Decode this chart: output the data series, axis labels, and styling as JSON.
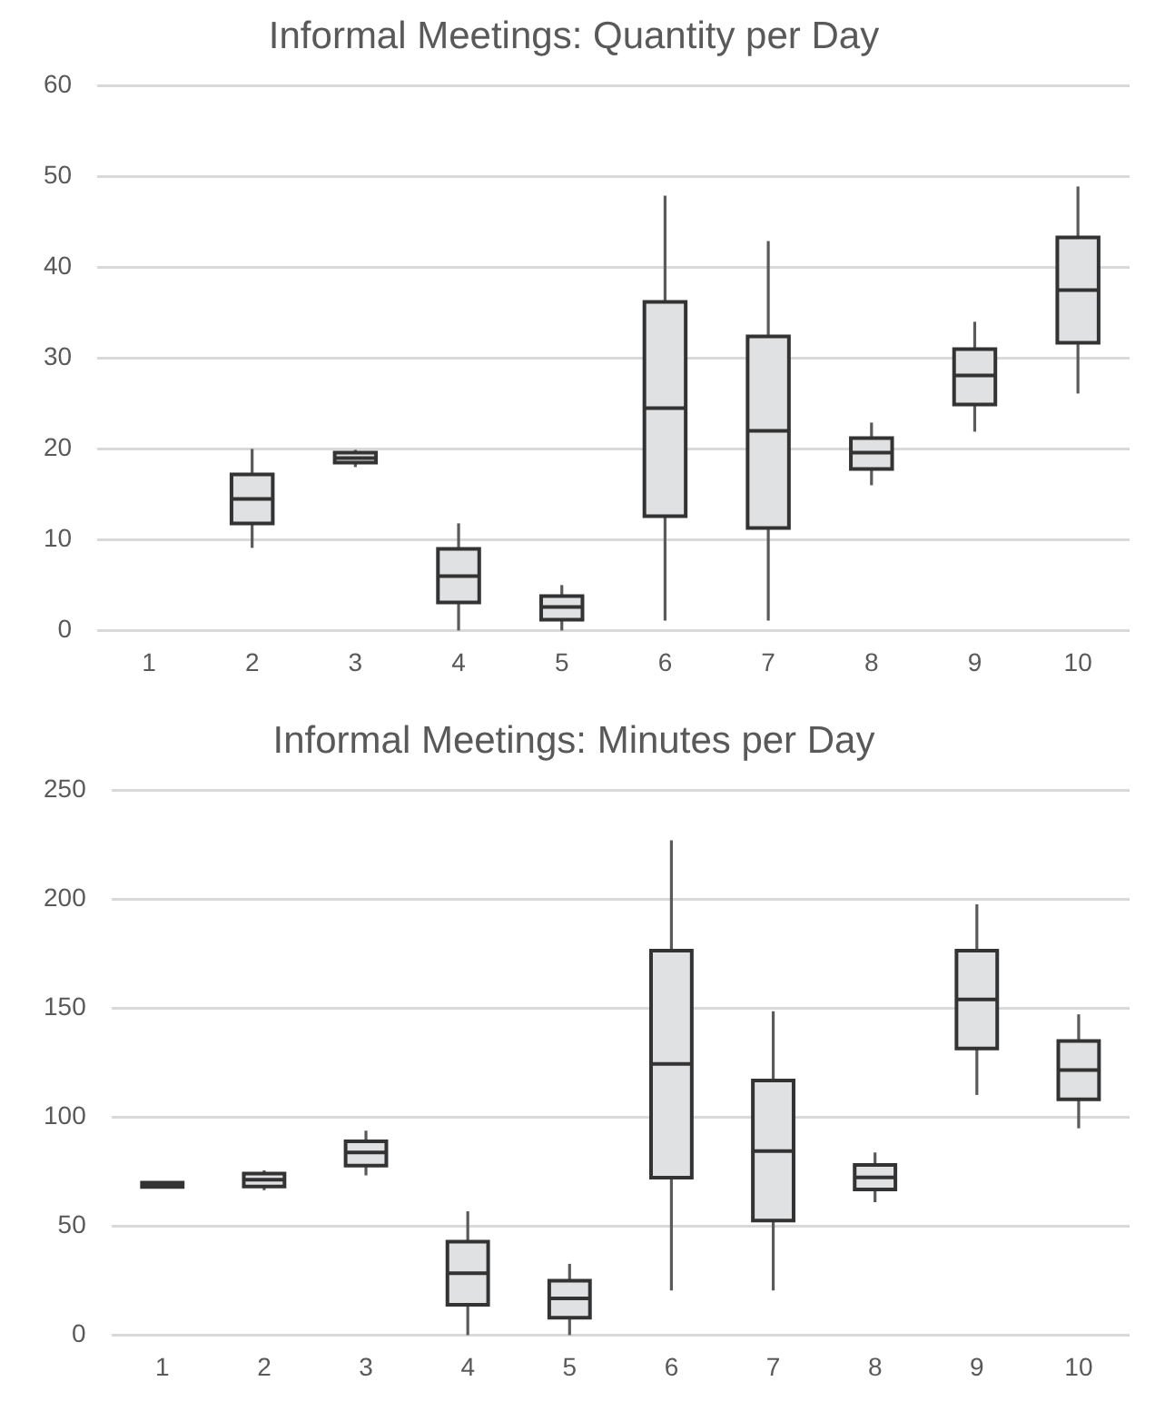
{
  "chart_data": [
    {
      "type": "box",
      "title": "Informal Meetings: Quantity per Day",
      "categories": [
        "1",
        "2",
        "3",
        "4",
        "5",
        "6",
        "7",
        "8",
        "9",
        "10"
      ],
      "color": "#e0e1e3",
      "grid": "y",
      "ylim": [
        0,
        60
      ],
      "yticks": [
        0,
        10,
        20,
        30,
        40,
        50,
        60
      ],
      "boxes": [
        null,
        {
          "low": 9.1,
          "q1": 11.8,
          "median": 14.5,
          "q3": 17.2,
          "high": 20
        },
        {
          "low": 18,
          "q1": 18.5,
          "median": 19,
          "q3": 19.6,
          "high": 19.9
        },
        {
          "low": 0,
          "q1": 3.1,
          "median": 6,
          "q3": 9,
          "high": 11.8
        },
        {
          "low": 0,
          "q1": 1.2,
          "median": 2.6,
          "q3": 3.8,
          "high": 5
        },
        {
          "low": 1.1,
          "q1": 12.6,
          "median": 24.5,
          "q3": 36.2,
          "high": 47.9
        },
        {
          "low": 1.1,
          "q1": 11.3,
          "median": 22,
          "q3": 32.4,
          "high": 42.9
        },
        {
          "low": 16,
          "q1": 17.8,
          "median": 19.6,
          "q3": 21.2,
          "high": 22.9
        },
        {
          "low": 21.9,
          "q1": 24.9,
          "median": 28.1,
          "q3": 31,
          "high": 34
        },
        {
          "low": 26.1,
          "q1": 31.7,
          "median": 37.5,
          "q3": 43.3,
          "high": 48.9
        }
      ]
    },
    {
      "type": "box",
      "title": "Informal Meetings: Minutes per Day",
      "categories": [
        "1",
        "2",
        "3",
        "4",
        "5",
        "6",
        "7",
        "8",
        "9",
        "10"
      ],
      "color": "#e0e1e3",
      "grid": "y",
      "ylim": [
        0,
        250
      ],
      "yticks": [
        0,
        50,
        100,
        150,
        200,
        250
      ],
      "boxes": [
        {
          "low": 68,
          "q1": 68,
          "median": 69,
          "q3": 70,
          "high": 70
        },
        {
          "low": 66.5,
          "q1": 68.2,
          "median": 71.3,
          "q3": 74.1,
          "high": 75.6
        },
        {
          "low": 73.3,
          "q1": 77.8,
          "median": 83.8,
          "q3": 88.9,
          "high": 93.8
        },
        {
          "low": 0,
          "q1": 13.9,
          "median": 28.4,
          "q3": 42.9,
          "high": 56.8
        },
        {
          "low": 0,
          "q1": 8,
          "median": 16.8,
          "q3": 25,
          "high": 32.7
        },
        {
          "low": 20.5,
          "q1": 72.2,
          "median": 124.4,
          "q3": 176.4,
          "high": 227
        },
        {
          "low": 20.5,
          "q1": 52.6,
          "median": 84.4,
          "q3": 116.8,
          "high": 148.6
        },
        {
          "low": 61,
          "q1": 66.8,
          "median": 72.4,
          "q3": 78.1,
          "high": 83.8
        },
        {
          "low": 110.2,
          "q1": 131.5,
          "median": 154,
          "q3": 176.4,
          "high": 197.7
        },
        {
          "low": 94.9,
          "q1": 108.2,
          "median": 121.6,
          "q3": 135,
          "high": 147.2
        }
      ]
    }
  ]
}
